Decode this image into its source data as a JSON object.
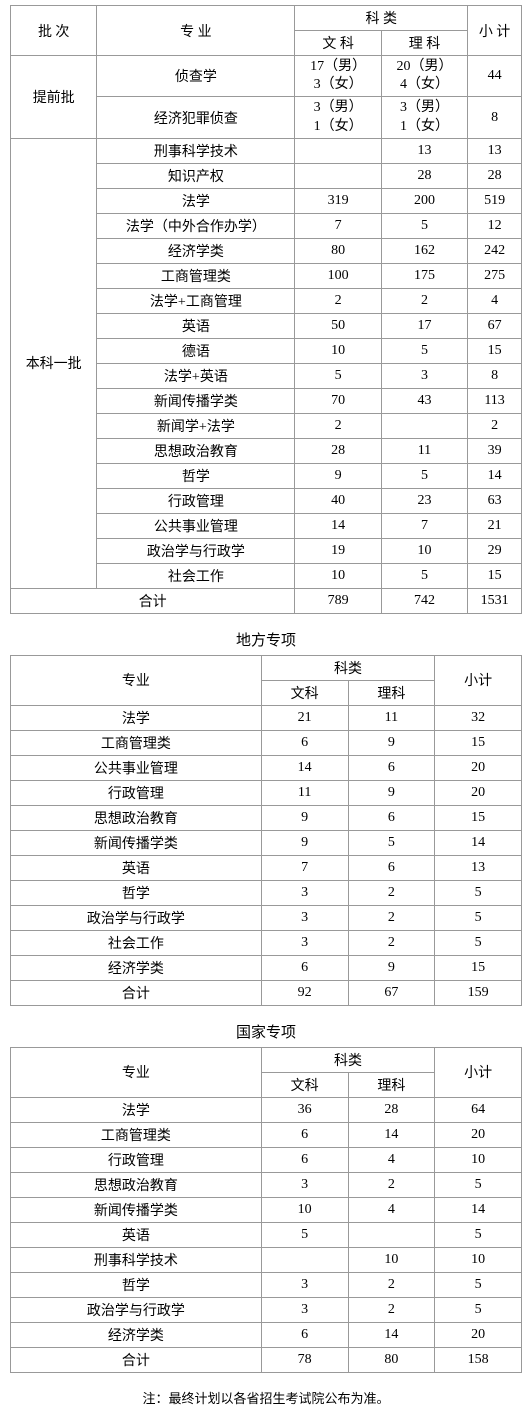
{
  "table1": {
    "headers": {
      "batch": "批 次",
      "major": "专 业",
      "category": "科 类",
      "wenke": "文 科",
      "like": "理 科",
      "subtotal": "小 计"
    },
    "tiqian_label": "提前批",
    "tiqian": [
      {
        "major": "侦查学",
        "wk1": "17（男）",
        "wk2": "3（女）",
        "lk1": "20（男）",
        "lk2": "4（女）",
        "st": "44"
      },
      {
        "major": "经济犯罪侦查",
        "wk1": "3（男）",
        "wk2": "1（女）",
        "lk1": "3（男）",
        "lk2": "1（女）",
        "st": "8"
      }
    ],
    "benke_label": "本科一批",
    "benke": [
      {
        "major": "刑事科学技术",
        "wk": "",
        "lk": "13",
        "st": "13"
      },
      {
        "major": "知识产权",
        "wk": "",
        "lk": "28",
        "st": "28"
      },
      {
        "major": "法学",
        "wk": "319",
        "lk": "200",
        "st": "519"
      },
      {
        "major": "法学（中外合作办学）",
        "wk": "7",
        "lk": "5",
        "st": "12"
      },
      {
        "major": "经济学类",
        "wk": "80",
        "lk": "162",
        "st": "242"
      },
      {
        "major": "工商管理类",
        "wk": "100",
        "lk": "175",
        "st": "275"
      },
      {
        "major": "法学+工商管理",
        "wk": "2",
        "lk": "2",
        "st": "4"
      },
      {
        "major": "英语",
        "wk": "50",
        "lk": "17",
        "st": "67"
      },
      {
        "major": "德语",
        "wk": "10",
        "lk": "5",
        "st": "15"
      },
      {
        "major": "法学+英语",
        "wk": "5",
        "lk": "3",
        "st": "8"
      },
      {
        "major": "新闻传播学类",
        "wk": "70",
        "lk": "43",
        "st": "113"
      },
      {
        "major": "新闻学+法学",
        "wk": "2",
        "lk": "",
        "st": "2"
      },
      {
        "major": "思想政治教育",
        "wk": "28",
        "lk": "11",
        "st": "39"
      },
      {
        "major": "哲学",
        "wk": "9",
        "lk": "5",
        "st": "14"
      },
      {
        "major": "行政管理",
        "wk": "40",
        "lk": "23",
        "st": "63"
      },
      {
        "major": "公共事业管理",
        "wk": "14",
        "lk": "7",
        "st": "21"
      },
      {
        "major": "政治学与行政学",
        "wk": "19",
        "lk": "10",
        "st": "29"
      },
      {
        "major": "社会工作",
        "wk": "10",
        "lk": "5",
        "st": "15"
      }
    ],
    "total": {
      "label": "合计",
      "wk": "789",
      "lk": "742",
      "st": "1531"
    }
  },
  "table2": {
    "title": "地方专项",
    "headers": {
      "major": "专业",
      "category": "科类",
      "wenke": "文科",
      "like": "理科",
      "subtotal": "小计"
    },
    "rows": [
      {
        "major": "法学",
        "wk": "21",
        "lk": "11",
        "st": "32"
      },
      {
        "major": "工商管理类",
        "wk": "6",
        "lk": "9",
        "st": "15"
      },
      {
        "major": "公共事业管理",
        "wk": "14",
        "lk": "6",
        "st": "20"
      },
      {
        "major": "行政管理",
        "wk": "11",
        "lk": "9",
        "st": "20"
      },
      {
        "major": "思想政治教育",
        "wk": "9",
        "lk": "6",
        "st": "15"
      },
      {
        "major": "新闻传播学类",
        "wk": "9",
        "lk": "5",
        "st": "14"
      },
      {
        "major": "英语",
        "wk": "7",
        "lk": "6",
        "st": "13"
      },
      {
        "major": "哲学",
        "wk": "3",
        "lk": "2",
        "st": "5"
      },
      {
        "major": "政治学与行政学",
        "wk": "3",
        "lk": "2",
        "st": "5"
      },
      {
        "major": "社会工作",
        "wk": "3",
        "lk": "2",
        "st": "5"
      },
      {
        "major": "经济学类",
        "wk": "6",
        "lk": "9",
        "st": "15"
      }
    ],
    "total": {
      "label": "合计",
      "wk": "92",
      "lk": "67",
      "st": "159"
    }
  },
  "table3": {
    "title": "国家专项",
    "headers": {
      "major": "专业",
      "category": "科类",
      "wenke": "文科",
      "like": "理科",
      "subtotal": "小计"
    },
    "rows": [
      {
        "major": "法学",
        "wk": "36",
        "lk": "28",
        "st": "64"
      },
      {
        "major": "工商管理类",
        "wk": "6",
        "lk": "14",
        "st": "20"
      },
      {
        "major": "行政管理",
        "wk": "6",
        "lk": "4",
        "st": "10"
      },
      {
        "major": "思想政治教育",
        "wk": "3",
        "lk": "2",
        "st": "5"
      },
      {
        "major": "新闻传播学类",
        "wk": "10",
        "lk": "4",
        "st": "14"
      },
      {
        "major": "英语",
        "wk": "5",
        "lk": "",
        "st": "5"
      },
      {
        "major": "刑事科学技术",
        "wk": "",
        "lk": "10",
        "st": "10"
      },
      {
        "major": "哲学",
        "wk": "3",
        "lk": "2",
        "st": "5"
      },
      {
        "major": "政治学与行政学",
        "wk": "3",
        "lk": "2",
        "st": "5"
      },
      {
        "major": "经济学类",
        "wk": "6",
        "lk": "14",
        "st": "20"
      }
    ],
    "total": {
      "label": "合计",
      "wk": "78",
      "lk": "80",
      "st": "158"
    }
  },
  "footnote": "注：最终计划以各省招生考试院公布为准。"
}
